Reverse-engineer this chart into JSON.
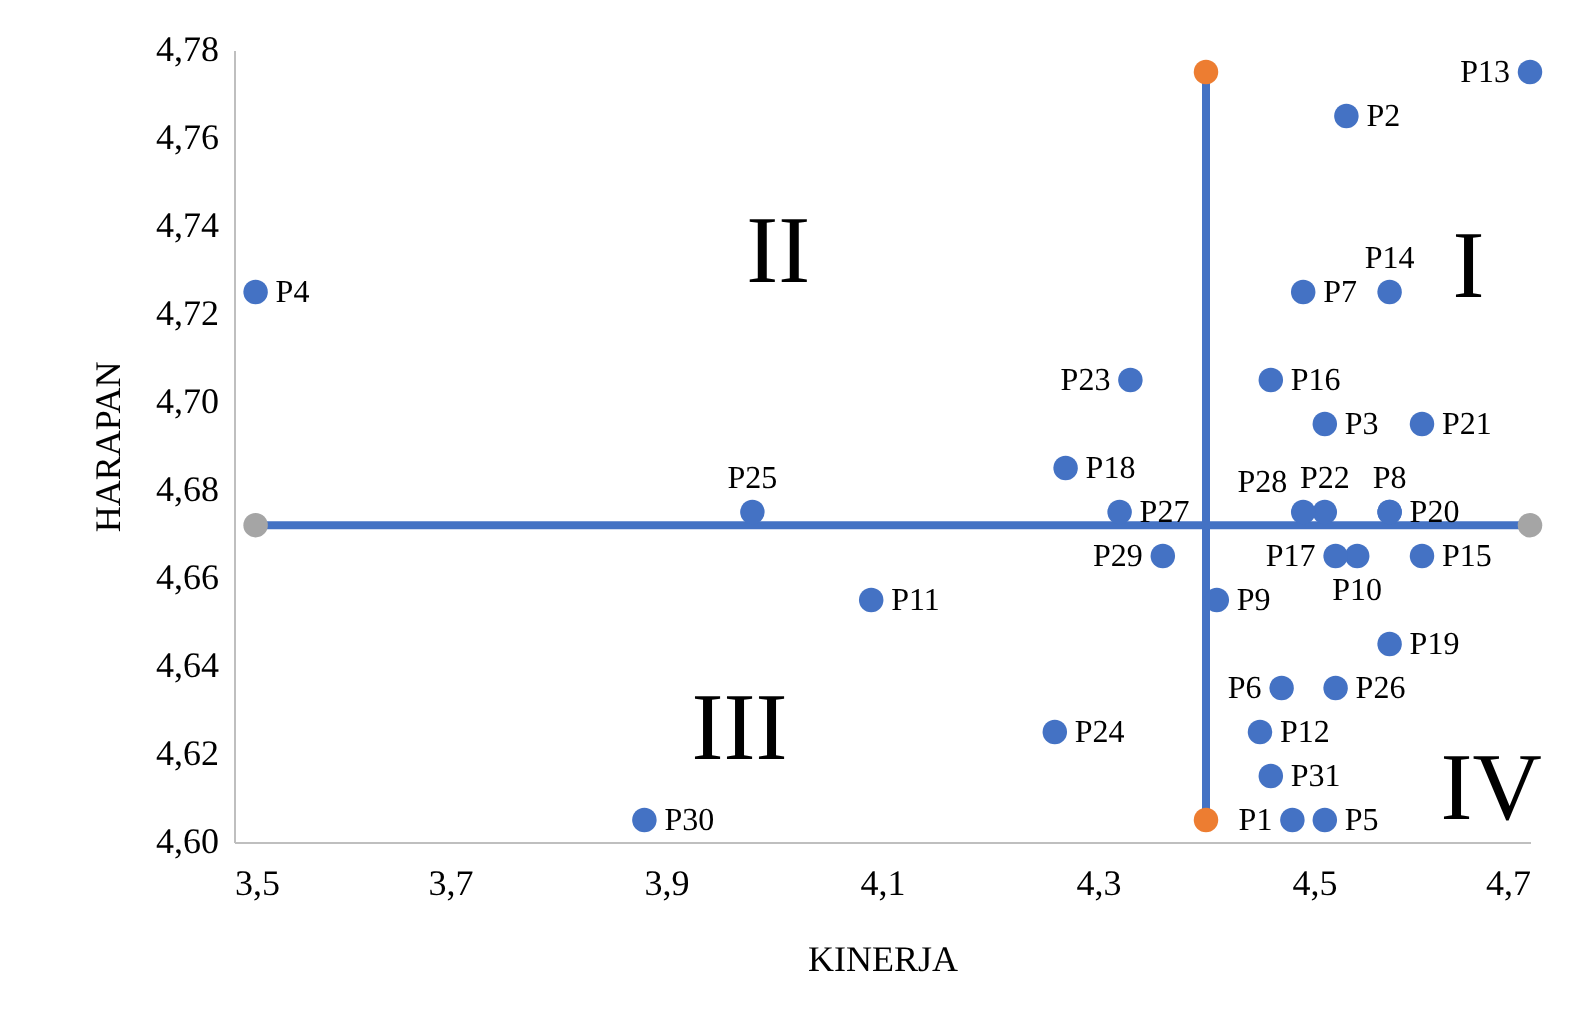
{
  "chart_data": {
    "type": "scatter",
    "xlabel": "KINERJA",
    "ylabel": "HARAPAN",
    "xlim": [
      3.5,
      4.7
    ],
    "ylim": [
      4.6,
      4.78
    ],
    "xticks": [
      {
        "value": 3.5,
        "label": "3,5"
      },
      {
        "value": 3.7,
        "label": "3,7"
      },
      {
        "value": 3.9,
        "label": "3,9"
      },
      {
        "value": 4.1,
        "label": "4,1"
      },
      {
        "value": 4.3,
        "label": "4,3"
      },
      {
        "value": 4.5,
        "label": "4,5"
      },
      {
        "value": 4.7,
        "label": "4,7"
      }
    ],
    "yticks": [
      {
        "value": 4.6,
        "label": "4,60"
      },
      {
        "value": 4.62,
        "label": "4,62"
      },
      {
        "value": 4.64,
        "label": "4,64"
      },
      {
        "value": 4.66,
        "label": "4,66"
      },
      {
        "value": 4.68,
        "label": "4,68"
      },
      {
        "value": 4.7,
        "label": "4,70"
      },
      {
        "value": 4.72,
        "label": "4,72"
      },
      {
        "value": 4.74,
        "label": "4,74"
      },
      {
        "value": 4.76,
        "label": "4,76"
      },
      {
        "value": 4.78,
        "label": "4,78"
      }
    ],
    "grid": false,
    "marker": "circle",
    "series": [
      {
        "color": "#4472c4",
        "x": [
          4.48,
          4.53,
          4.51,
          3.52,
          4.51,
          4.47,
          4.49,
          4.57,
          4.41,
          4.54,
          4.09,
          4.45,
          4.7,
          4.57,
          4.6,
          4.46,
          4.52,
          4.27,
          4.57,
          4.57,
          4.6,
          4.51,
          4.33,
          4.26,
          3.98,
          4.52,
          4.32,
          4.49,
          4.36,
          3.88,
          4.46
        ],
        "values": [
          4.605,
          4.765,
          4.695,
          4.725,
          4.605,
          4.635,
          4.725,
          4.675,
          4.655,
          4.665,
          4.655,
          4.625,
          4.775,
          4.725,
          4.665,
          4.705,
          4.665,
          4.685,
          4.645,
          4.675,
          4.695,
          4.675,
          4.705,
          4.625,
          4.675,
          4.635,
          4.675,
          4.675,
          4.665,
          4.605,
          4.615
        ],
        "value_labels": [
          "P1",
          "P2",
          "P3",
          "P4",
          "P5",
          "P6",
          "P7",
          "P8",
          "P9",
          "P10",
          "P11",
          "P12",
          "P13",
          "P14",
          "P15",
          "P16",
          "P17",
          "P18",
          "P19",
          "P20",
          "P21",
          "P22",
          "P23",
          "P24",
          "P25",
          "P26",
          "P27",
          "P28",
          "P29",
          "P30",
          "P31"
        ]
      },
      {
        "type": "line",
        "color": "#4472c4",
        "x": [
          3.52,
          4.7
        ],
        "values": [
          4.672,
          4.672
        ],
        "colors": [
          "#a5a5a5",
          "#a5a5a5"
        ]
      },
      {
        "type": "line",
        "color": "#4472c4",
        "x": [
          4.4,
          4.4
        ],
        "values": [
          4.605,
          4.775
        ],
        "colors": [
          "#ed7d31",
          "#ed7d31"
        ]
      }
    ],
    "annotations": [
      "I",
      "II",
      "III",
      "IV"
    ]
  }
}
